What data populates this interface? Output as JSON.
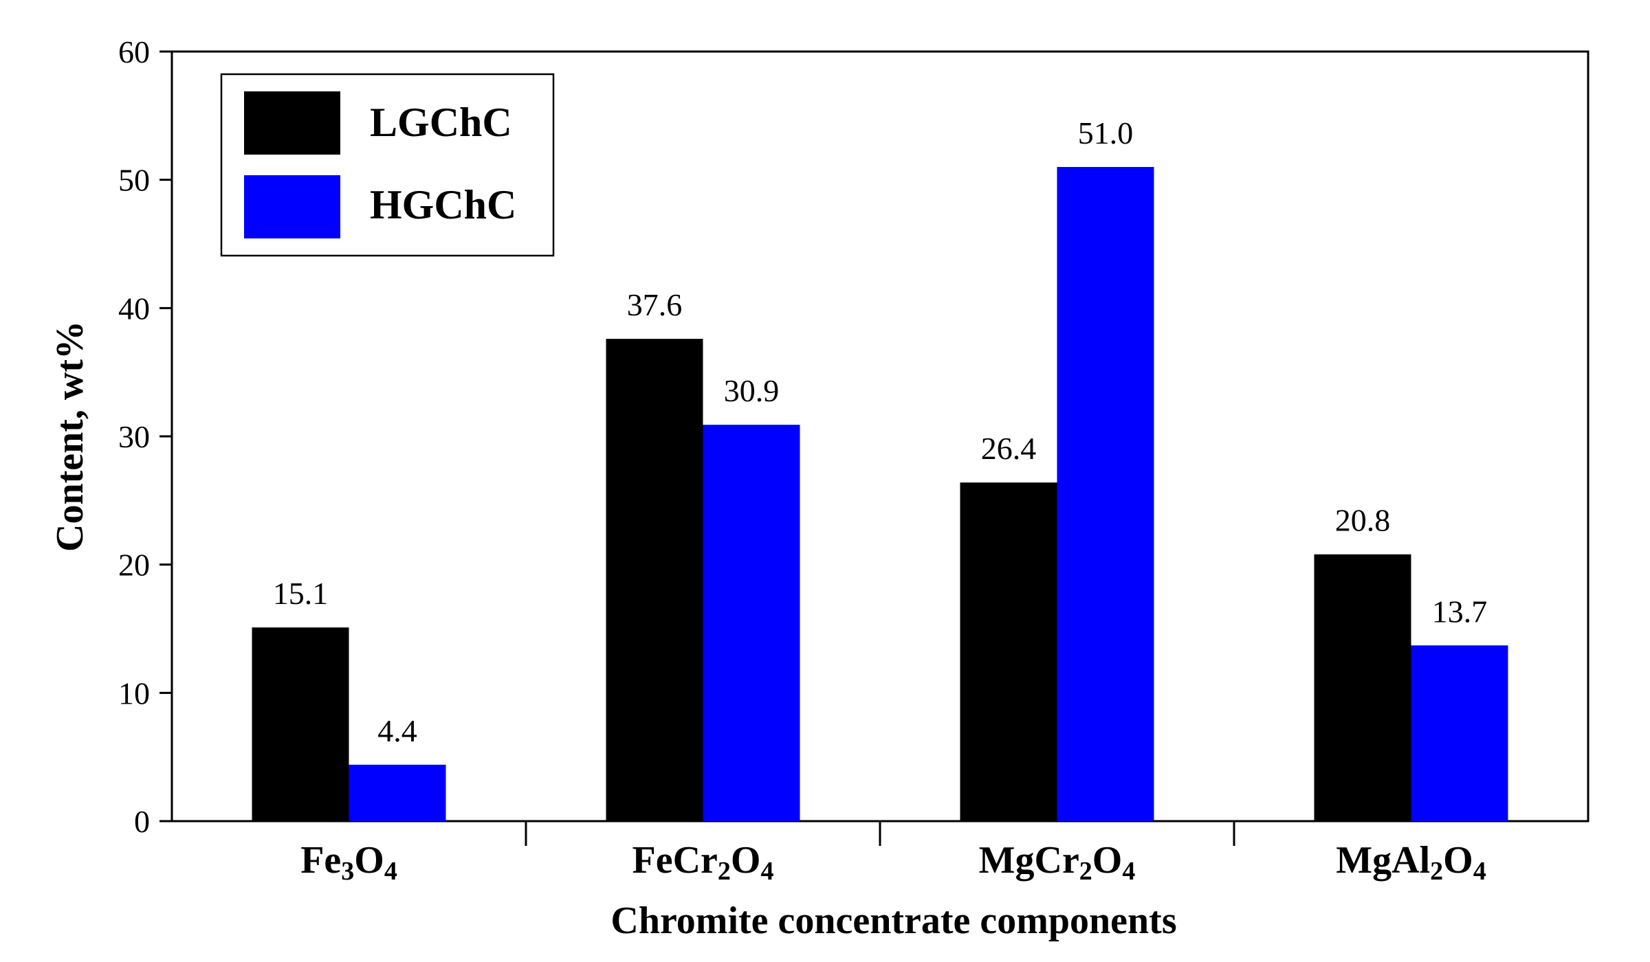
{
  "chart_data": {
    "type": "bar",
    "title": "",
    "xlabel": "Chromite concentrate components",
    "ylabel": "Content, wt%",
    "ylim": [
      0,
      60
    ],
    "yticks": [
      0,
      10,
      20,
      30,
      40,
      50,
      60
    ],
    "categories": [
      {
        "base": "Fe",
        "parts": [
          {
            "t": "Fe"
          },
          {
            "t": "3",
            "sub": true
          },
          {
            "t": "O"
          },
          {
            "t": "4",
            "sub": true
          }
        ]
      },
      {
        "base": "FeCr",
        "parts": [
          {
            "t": "FeCr"
          },
          {
            "t": "2",
            "sub": true
          },
          {
            "t": "O"
          },
          {
            "t": "4",
            "sub": true
          }
        ]
      },
      {
        "base": "MgCr",
        "parts": [
          {
            "t": "MgCr"
          },
          {
            "t": "2",
            "sub": true
          },
          {
            "t": "O"
          },
          {
            "t": "4",
            "sub": true
          }
        ]
      },
      {
        "base": "MgAl",
        "parts": [
          {
            "t": "MgAl"
          },
          {
            "t": "2",
            "sub": true
          },
          {
            "t": "O"
          },
          {
            "t": "4",
            "sub": true
          }
        ]
      }
    ],
    "series": [
      {
        "name": "LGChC",
        "color": "#000000",
        "values": [
          15.1,
          37.6,
          26.4,
          20.8
        ],
        "labels": [
          "15.1",
          "37.6",
          "26.4",
          "20.8"
        ]
      },
      {
        "name": "HGChC",
        "color": "#0000ff",
        "values": [
          4.4,
          30.9,
          51.0,
          13.7
        ],
        "labels": [
          "4.4",
          "30.9",
          "51.0",
          "13.7"
        ]
      }
    ],
    "legend": {
      "position": "top-left"
    },
    "grid": false
  }
}
